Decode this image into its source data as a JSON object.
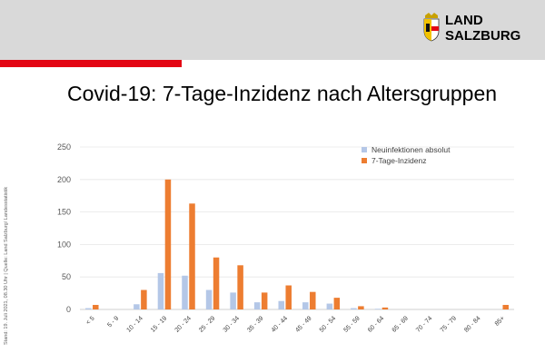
{
  "header": {
    "logo_line1": "LAND",
    "logo_line2": "SALZBURG",
    "title": "Covid-19: 7-Tage-Inzidenz nach Altersgruppen",
    "side_note": "Stand: 19. Juli 2021, 08.30 Uhr | Quelle: Land Salzburg/ Landesstatistik"
  },
  "colors": {
    "header_band": "#d9d9d9",
    "accent_red": "#e30613",
    "series_absolute": "#b4c7e7",
    "series_incidence": "#ed7d31"
  },
  "chart_data": {
    "type": "bar",
    "title": "Covid-19: 7-Tage-Inzidenz nach Altersgruppen",
    "xlabel": "",
    "ylabel": "",
    "ylim": [
      0,
      250
    ],
    "yticks": [
      0,
      50,
      100,
      150,
      200,
      250
    ],
    "grid": true,
    "legend": "top-right",
    "categories": [
      "< 5",
      "5 - 9",
      "10 - 14",
      "15 - 19",
      "20 - 24",
      "25 - 29",
      "30 - 34",
      "35 - 39",
      "40 - 44",
      "45 - 49",
      "50 - 54",
      "55 - 59",
      "60 - 64",
      "65 - 69",
      "70 - 74",
      "75 - 79",
      "80 - 84",
      "85+"
    ],
    "series": [
      {
        "name": "Neuinfektionen absolut",
        "color": "#b4c7e7",
        "values": [
          2,
          0,
          8,
          56,
          52,
          30,
          26,
          11,
          13,
          11,
          9,
          2,
          1,
          0,
          0,
          0,
          0,
          0
        ]
      },
      {
        "name": "7-Tage-Inzidenz",
        "color": "#ed7d31",
        "values": [
          7,
          0,
          30,
          200,
          163,
          80,
          68,
          26,
          37,
          27,
          18,
          5,
          3,
          0,
          0,
          0,
          0,
          7
        ]
      }
    ]
  }
}
